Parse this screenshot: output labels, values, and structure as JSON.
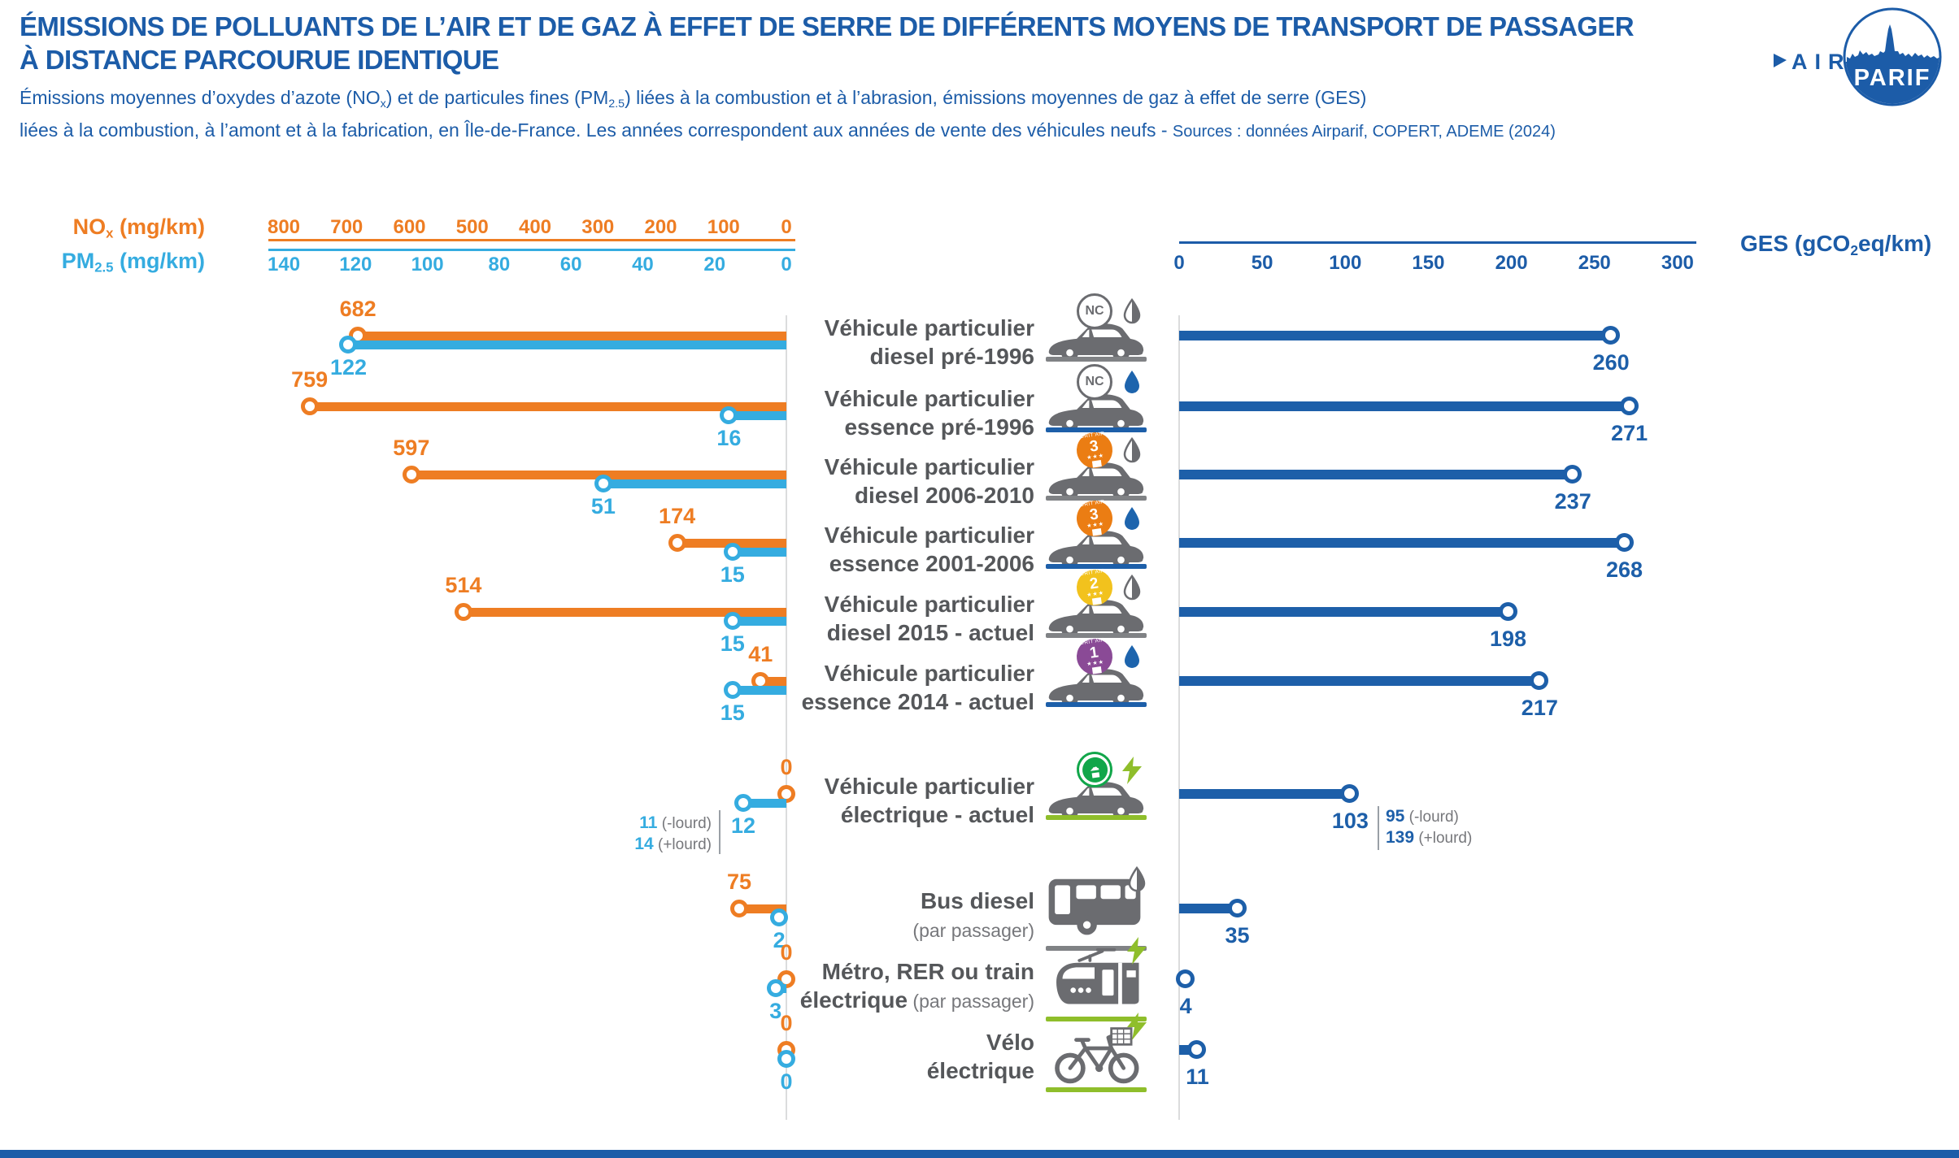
{
  "header": {
    "title_line1": "ÉMISSIONS DE POLLUANTS DE L’AIR ET DE GAZ À EFFET DE SERRE DE DIFFÉRENTS MOYENS DE TRANSPORT DE PASSAGER",
    "title_line2": "À DISTANCE PARCOURUE IDENTIQUE",
    "subtitle": {
      "l1a": "Émissions moyennes d’oxydes d’azote (NO",
      "l1a_sub": "x",
      "l1b": ") et de particules fines (PM",
      "l1b_sub": "2.5",
      "l1c": ") liées à la combustion et à l’abrasion, émissions moyennes de gaz à effet de serre (GES)",
      "l2": "liées à la combustion, à l’amont et à la fabrication, en Île-de-France. Les années correspondent  aux années de vente des véhicules neufs - ",
      "sources": "Sources : données Airparif, COPERT, ADEME (2024)"
    },
    "logo": {
      "prefix": "AIR",
      "suffix": "PARIF"
    }
  },
  "colors": {
    "orange": "#EE7D23",
    "cyan": "#35ACE0",
    "blue": "#1D5FA9",
    "title_blue": "#1C5CA8",
    "text_gray": "#55575A",
    "muted_gray": "#76777B",
    "icon_gray": "#6B6C70",
    "green": "#8FBE2B",
    "badge_orange": "#EB7D13",
    "badge_yellow": "#F2C21D",
    "badge_purple": "#8A4A96",
    "badge_green": "#11A64A",
    "droplet_diesel": "#6B6C70",
    "droplet_essence": "#1D64AD",
    "underline_gray": "#808285",
    "zero_line_gray": "#DBDCDD"
  },
  "chart_data": {
    "type": "bar",
    "variant": "horizontal lollipop / dumbbell, left panel axes reversed (0 at right), right panel GES",
    "critair_text": "CRIT'AIR",
    "badge_stars": "★★★",
    "axes": {
      "nox": {
        "label": "NOx (mg/km)",
        "label_main": "NO",
        "label_sub": "x",
        "label_unit": " (mg/km)",
        "ticks": [
          800,
          700,
          600,
          500,
          400,
          300,
          200,
          100,
          0
        ],
        "range": [
          0,
          800
        ],
        "color": "#EE7D23"
      },
      "pm25": {
        "label": "PM2.5 (mg/km)",
        "label_main": "PM",
        "label_sub": "2.5",
        "label_unit": " (mg/km)",
        "ticks": [
          140,
          120,
          100,
          80,
          60,
          40,
          20,
          0
        ],
        "range": [
          0,
          140
        ],
        "color": "#35ACE0"
      },
      "ges": {
        "label": "GES (gCO2eq/km)",
        "label_main": "GES (gCO",
        "label_sub": "2",
        "label_unit": "eq/km)",
        "ticks": [
          0,
          50,
          100,
          150,
          200,
          250,
          300
        ],
        "range": [
          0,
          300
        ],
        "color": "#1C5CA8"
      }
    },
    "rows": [
      {
        "label1": "Véhicule particulier",
        "label2": "diesel pré-1996",
        "icon": "car",
        "badge": "nc",
        "badge_label": "NC",
        "energy": "diesel",
        "underline": "gray",
        "nox": 682,
        "pm25": 122,
        "ges": 260
      },
      {
        "label1": "Véhicule particulier",
        "label2": "essence pré-1996",
        "icon": "car",
        "badge": "nc",
        "badge_label": "NC",
        "energy": "essence",
        "underline": "blue",
        "nox": 759,
        "pm25": 16,
        "ges": 271
      },
      {
        "label1": "Véhicule particulier",
        "label2": "diesel 2006-2010",
        "icon": "car",
        "badge": "critair",
        "badge_label": "3",
        "badge_color": "#EB7D13",
        "energy": "diesel",
        "underline": "gray",
        "nox": 597,
        "pm25": 51,
        "ges": 237
      },
      {
        "label1": "Véhicule particulier",
        "label2": "essence 2001-2006",
        "icon": "car",
        "badge": "critair",
        "badge_label": "3",
        "badge_color": "#EB7D13",
        "energy": "essence",
        "underline": "blue",
        "nox": 174,
        "pm25": 15,
        "ges": 268
      },
      {
        "label1": "Véhicule particulier",
        "label2": "diesel 2015 - actuel",
        "icon": "car",
        "badge": "critair",
        "badge_label": "2",
        "badge_color": "#F2C21D",
        "energy": "diesel",
        "underline": "gray",
        "nox": 514,
        "pm25": 15,
        "ges": 198
      },
      {
        "label1": "Véhicule particulier",
        "label2": "essence 2014 - actuel",
        "icon": "car",
        "badge": "critair",
        "badge_label": "1",
        "badge_color": "#8A4A96",
        "energy": "essence",
        "underline": "blue",
        "nox": 41,
        "pm25": 15,
        "ges": 217
      },
      {
        "label1": "Véhicule particulier",
        "label2": "électrique - actuel",
        "icon": "car",
        "badge": "e",
        "badge_label": "",
        "energy": "electric",
        "underline": "green",
        "nox": 0,
        "pm25": 12,
        "ges": 103,
        "pm25_note": [
          {
            "v": "11",
            "s": " (-lourd)"
          },
          {
            "v": "14",
            "s": " (+lourd)"
          }
        ],
        "ges_note": [
          {
            "v": "95",
            "s": " (-lourd)"
          },
          {
            "v": "139",
            "s": " (+lourd)"
          }
        ]
      },
      {
        "label1": "Bus diesel",
        "label2": "",
        "label2_small": "(par passager)",
        "icon": "bus",
        "energy": "diesel",
        "underline": "gray",
        "nox": 75,
        "pm25": 2,
        "ges": 35
      },
      {
        "label1": "Métro, RER ou train",
        "label2": "électrique",
        "label2_small": " (par passager)",
        "icon": "train",
        "energy": "electric",
        "underline": "green",
        "nox": 0,
        "pm25": 3,
        "ges": 4
      },
      {
        "label1": "Vélo",
        "label2": "électrique",
        "icon": "bike",
        "energy": "electric",
        "underline": "green",
        "nox": 0,
        "pm25": 0,
        "ges": 11
      }
    ]
  }
}
